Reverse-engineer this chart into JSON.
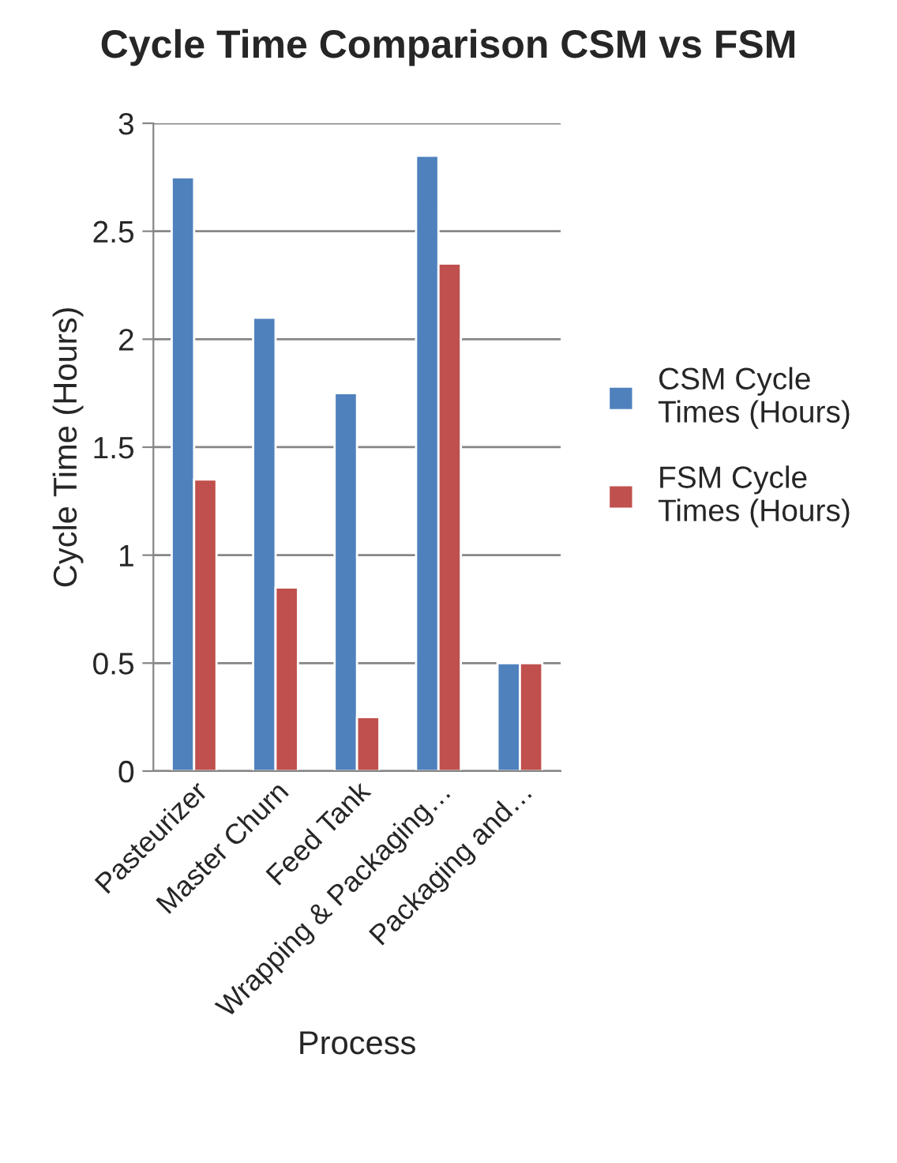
{
  "chart_data": {
    "type": "bar",
    "title": "Cycle Time Comparison CSM vs FSM",
    "xlabel": "Process",
    "ylabel": "Cycle Time (Hours)",
    "categories": [
      "Pasteurizer",
      "Master Churn",
      "Feed Tank",
      "Wrapping & Packaging…",
      "Packaging and…"
    ],
    "series": [
      {
        "name": "CSM Cycle Times (Hours)",
        "color": "#4f81bd",
        "values": [
          2.75,
          2.1,
          1.75,
          2.85,
          0.5
        ]
      },
      {
        "name": "FSM Cycle Times (Hours)",
        "color": "#c0504d",
        "values": [
          1.35,
          0.85,
          0.25,
          2.35,
          0.5
        ]
      }
    ],
    "ylim": [
      0,
      3
    ],
    "yticks": [
      0,
      0.5,
      1,
      1.5,
      2,
      2.5,
      3
    ],
    "grid": "y",
    "legend": "right"
  }
}
